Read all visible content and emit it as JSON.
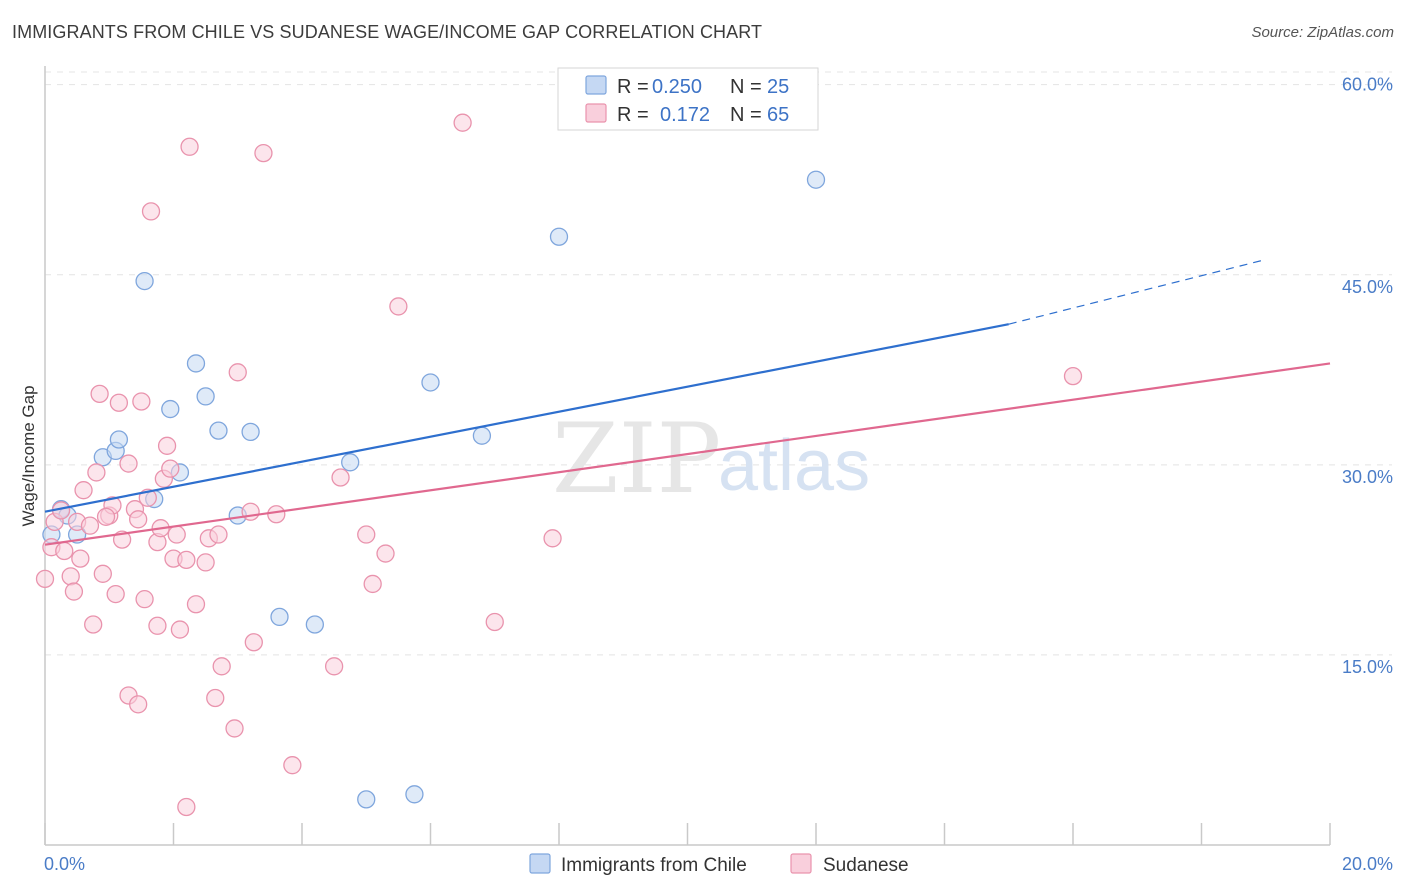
{
  "title": "IMMIGRANTS FROM CHILE VS SUDANESE WAGE/INCOME GAP CORRELATION CHART",
  "source": "Source: ZipAtlas.com",
  "watermark": {
    "zip": "ZIP",
    "atlas": "atlas"
  },
  "legend": {
    "r_label": "R =",
    "n_label": "N =",
    "rows": [
      {
        "r": "0.250",
        "n": "25"
      },
      {
        "r": "0.172",
        "n": "65"
      }
    ]
  },
  "colors": {
    "chile_fill": "#c5d8f3",
    "chile_stroke": "#7fa6dd",
    "chile_line": "#2e6fce",
    "sudanese_fill": "#f9cfdc",
    "sudanese_stroke": "#e993ad",
    "sudanese_line": "#e0688f",
    "grid": "#e4e4e4",
    "axis_text": "#4a7cc7"
  },
  "chart_data": {
    "type": "scatter",
    "title": "IMMIGRANTS FROM CHILE VS SUDANESE WAGE/INCOME GAP CORRELATION CHART",
    "xlabel": "",
    "ylabel": "Wage/Income Gap",
    "xlim": [
      0,
      20
    ],
    "ylim": [
      0,
      61
    ],
    "x_tick_labels": [
      "0.0%",
      "20.0%"
    ],
    "y_ticks": [
      15,
      30,
      45,
      60
    ],
    "y_tick_labels": [
      "15.0%",
      "30.0%",
      "45.0%",
      "60.0%"
    ],
    "grid": true,
    "legend_position": "top-center",
    "series": [
      {
        "name": "Immigrants from Chile",
        "r": 0.25,
        "n": 25,
        "trend": {
          "x0": 0,
          "y0": 26.3,
          "x1": 15,
          "y1": 41.1,
          "dashed_to_x": 19,
          "dashed_to_y": 46.2
        },
        "points": [
          [
            0.1,
            24.5
          ],
          [
            0.25,
            26.5
          ],
          [
            0.5,
            24.5
          ],
          [
            0.35,
            26.0
          ],
          [
            0.9,
            30.6
          ],
          [
            1.1,
            31.1
          ],
          [
            1.15,
            32.0
          ],
          [
            1.55,
            44.5
          ],
          [
            1.7,
            27.3
          ],
          [
            1.95,
            34.4
          ],
          [
            2.1,
            29.4
          ],
          [
            2.35,
            38.0
          ],
          [
            2.5,
            35.4
          ],
          [
            2.7,
            32.7
          ],
          [
            3.0,
            26.0
          ],
          [
            3.2,
            32.6
          ],
          [
            3.65,
            18.0
          ],
          [
            4.2,
            17.4
          ],
          [
            4.75,
            30.2
          ],
          [
            5.0,
            3.6
          ],
          [
            5.75,
            4.0
          ],
          [
            6.0,
            36.5
          ],
          [
            6.8,
            32.3
          ],
          [
            8.0,
            48.0
          ],
          [
            12.0,
            52.5
          ]
        ]
      },
      {
        "name": "Sudanese",
        "r": 0.172,
        "n": 65,
        "trend": {
          "x0": 0,
          "y0": 23.7,
          "x1": 20,
          "y1": 38.0
        },
        "points": [
          [
            0.0,
            21.0
          ],
          [
            0.1,
            23.5
          ],
          [
            0.15,
            25.5
          ],
          [
            0.25,
            26.4
          ],
          [
            0.3,
            23.2
          ],
          [
            0.4,
            21.2
          ],
          [
            0.45,
            20.0
          ],
          [
            0.5,
            25.5
          ],
          [
            0.55,
            22.6
          ],
          [
            0.6,
            28.0
          ],
          [
            0.7,
            25.2
          ],
          [
            0.75,
            17.4
          ],
          [
            0.8,
            29.4
          ],
          [
            0.85,
            35.6
          ],
          [
            0.9,
            21.4
          ],
          [
            1.0,
            26.0
          ],
          [
            1.05,
            26.8
          ],
          [
            1.1,
            19.8
          ],
          [
            1.15,
            34.9
          ],
          [
            1.2,
            24.1
          ],
          [
            1.3,
            30.1
          ],
          [
            1.3,
            11.8
          ],
          [
            1.4,
            26.5
          ],
          [
            1.45,
            25.7
          ],
          [
            1.45,
            11.1
          ],
          [
            1.5,
            35.0
          ],
          [
            1.55,
            19.4
          ],
          [
            1.6,
            27.4
          ],
          [
            1.65,
            50.0
          ],
          [
            1.75,
            23.9
          ],
          [
            1.75,
            17.3
          ],
          [
            1.85,
            28.9
          ],
          [
            1.9,
            31.5
          ],
          [
            1.95,
            29.7
          ],
          [
            2.0,
            22.6
          ],
          [
            2.05,
            24.5
          ],
          [
            2.1,
            17.0
          ],
          [
            2.2,
            22.5
          ],
          [
            2.2,
            3.0
          ],
          [
            2.25,
            55.1
          ],
          [
            2.35,
            19.0
          ],
          [
            2.5,
            22.3
          ],
          [
            2.55,
            24.2
          ],
          [
            2.65,
            11.6
          ],
          [
            2.7,
            24.5
          ],
          [
            2.75,
            14.1
          ],
          [
            2.95,
            9.2
          ],
          [
            3.0,
            37.3
          ],
          [
            3.2,
            26.3
          ],
          [
            3.25,
            16.0
          ],
          [
            3.4,
            54.6
          ],
          [
            3.6,
            26.1
          ],
          [
            3.85,
            6.3
          ],
          [
            4.5,
            14.1
          ],
          [
            4.6,
            29.0
          ],
          [
            5.0,
            24.5
          ],
          [
            5.1,
            20.6
          ],
          [
            5.3,
            23.0
          ],
          [
            5.5,
            42.5
          ],
          [
            6.5,
            57.0
          ],
          [
            7.0,
            17.6
          ],
          [
            7.9,
            24.2
          ],
          [
            16.0,
            37.0
          ],
          [
            1.8,
            25.0
          ],
          [
            0.95,
            25.9
          ]
        ]
      }
    ]
  }
}
